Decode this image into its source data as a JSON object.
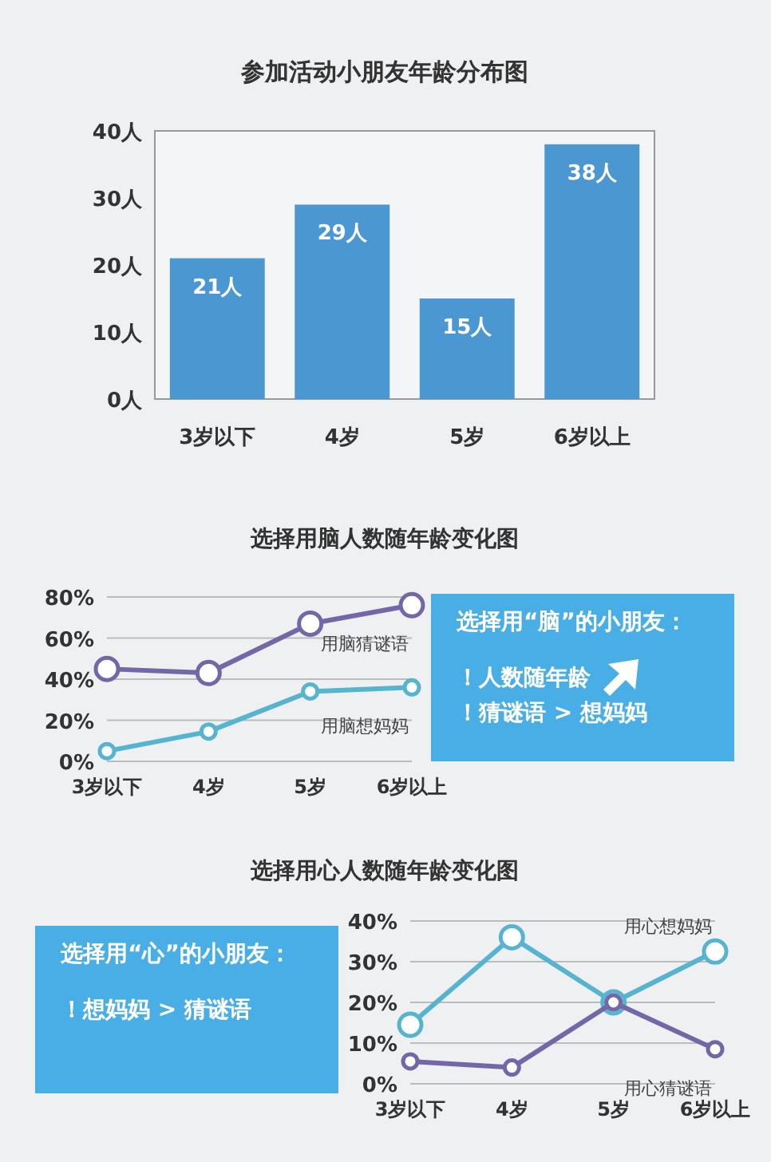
{
  "chart_data": [
    {
      "type": "bar",
      "title": "参加活动小朋友年龄分布图",
      "categories": [
        "3岁以下",
        "4岁",
        "5岁",
        "6岁以上"
      ],
      "values": [
        21,
        29,
        15,
        38
      ],
      "value_labels": [
        "21人",
        "29人",
        "15人",
        "38人"
      ],
      "color": "#4a97d2",
      "ylim": [
        0,
        40
      ],
      "yticks": [
        {
          "value": 0,
          "label": "0人"
        },
        {
          "value": 10,
          "label": "10人"
        },
        {
          "value": 20,
          "label": "20人"
        },
        {
          "value": 30,
          "label": "30人"
        },
        {
          "value": 40,
          "label": "40人"
        }
      ],
      "grid": false
    },
    {
      "type": "line",
      "title": "选择用脑人数随年龄变化图",
      "categories": [
        "3岁以下",
        "4岁",
        "5岁",
        "6岁以上"
      ],
      "ylim": [
        0,
        80
      ],
      "yticks": [
        {
          "value": 0,
          "label": "0%"
        },
        {
          "value": 20,
          "label": "20%"
        },
        {
          "value": 40,
          "label": "40%"
        },
        {
          "value": 60,
          "label": "60%"
        },
        {
          "value": 80,
          "label": "80%"
        }
      ],
      "grid": "y",
      "marker": "circle",
      "legend": false,
      "series": [
        {
          "name": "用脑猜谜语",
          "color": "#7467a8",
          "values": [
            45,
            43,
            67,
            76
          ]
        },
        {
          "name": "用脑想妈妈",
          "color": "#56b4d0",
          "values": [
            5,
            14.5,
            34,
            36
          ]
        }
      ]
    },
    {
      "type": "other",
      "title": "选择用“脑”的小朋友：",
      "annotations": [
        "！人数随年龄",
        "！猜谜语 > 想妈妈"
      ]
    },
    {
      "type": "other",
      "title": "选择用“心”的小朋友：",
      "annotations": [
        "！想妈妈 > 猜谜语"
      ]
    },
    {
      "type": "line",
      "title": "选择用心人数随年龄变化图",
      "categories": [
        "3岁以下",
        "4岁",
        "5岁",
        "6岁以上"
      ],
      "ylim": [
        0,
        40
      ],
      "yticks": [
        {
          "value": 0,
          "label": "0%"
        },
        {
          "value": 10,
          "label": "10%"
        },
        {
          "value": 20,
          "label": "20%"
        },
        {
          "value": 30,
          "label": "30%"
        },
        {
          "value": 40,
          "label": "40%"
        }
      ],
      "grid": "y",
      "marker": "circle",
      "legend": false,
      "series": [
        {
          "name": "用心想妈妈",
          "color": "#56b4d0",
          "values": [
            14.5,
            36,
            20,
            32.5
          ]
        },
        {
          "name": "用心猜谜语",
          "color": "#7467a8",
          "values": [
            5.5,
            4,
            20,
            8.5
          ]
        }
      ]
    }
  ]
}
